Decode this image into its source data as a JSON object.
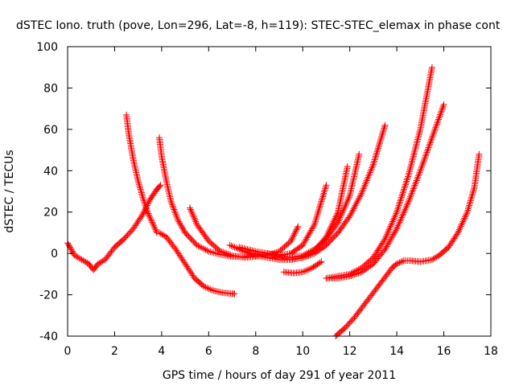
{
  "chart_data": {
    "type": "scatter",
    "title": "dSTEC Iono. truth (pove, Lon=296, Lat=-8, h=119): STEC-STEC_elemax in phase cont",
    "xlabel": "GPS time / hours of day 291 of year 2011",
    "ylabel": "dSTEC  / TECUs",
    "xlim": [
      0,
      18
    ],
    "ylim": [
      -40,
      100
    ],
    "xticks": [
      0,
      2,
      4,
      6,
      8,
      10,
      12,
      14,
      16,
      18
    ],
    "yticks": [
      -40,
      -20,
      0,
      20,
      40,
      60,
      80,
      100
    ],
    "xtick_labels": [
      "0",
      "2",
      "4",
      "6",
      "8",
      "10",
      "12",
      "14",
      "16",
      "18"
    ],
    "ytick_labels": [
      "-40",
      "-20",
      "0",
      "20",
      "40",
      "60",
      "80",
      "100"
    ],
    "grid": false,
    "marker": "plus",
    "color": "#ff0000",
    "series": [
      {
        "x": [
          0.0,
          0.3,
          0.6,
          0.9,
          1.1,
          1.3,
          1.6,
          2.0,
          2.4,
          2.8,
          3.2,
          3.5,
          3.8,
          3.95
        ],
        "y": [
          5,
          -1,
          -3,
          -5,
          -8,
          -5,
          -3,
          3,
          7,
          12,
          19,
          26,
          31,
          33
        ]
      },
      {
        "x": [
          2.5,
          2.6,
          2.8,
          3.0,
          3.2,
          3.4,
          3.6,
          3.8
        ],
        "y": [
          67,
          58,
          45,
          35,
          27,
          20,
          15,
          10
        ]
      },
      {
        "x": [
          3.9,
          4.2,
          4.6,
          5.0,
          5.4,
          5.8,
          6.2,
          6.6,
          7.0,
          7.1
        ],
        "y": [
          10,
          8,
          2,
          -5,
          -12,
          -16,
          -18,
          -19,
          -19.5,
          -19.5
        ]
      },
      {
        "x": [
          3.9,
          4.0,
          4.2,
          4.4,
          4.7,
          5.0,
          5.5,
          6.0,
          6.5,
          7.0,
          7.5,
          8.0,
          8.5,
          9.0
        ],
        "y": [
          56,
          47,
          35,
          25,
          16,
          10,
          4,
          1,
          -0.5,
          -1.5,
          -1.5,
          -1,
          -0.5,
          -0.5
        ]
      },
      {
        "x": [
          5.2,
          5.5,
          6.0,
          6.5,
          7.0,
          7.5,
          8.0,
          8.5,
          9.0,
          9.5,
          9.8
        ],
        "y": [
          22,
          14,
          6,
          1,
          -1,
          -2,
          -1.5,
          -1,
          1,
          6,
          13
        ]
      },
      {
        "x": [
          6.9,
          7.5,
          8.0,
          8.5,
          9.0,
          9.5,
          10.0,
          10.5,
          11.0,
          11.5,
          11.9
        ],
        "y": [
          4,
          1,
          -1,
          -2,
          -3,
          -3,
          -2,
          1,
          8,
          20,
          42
        ]
      },
      {
        "x": [
          7.3,
          8.0,
          8.5,
          9.0,
          9.5,
          10.0,
          10.5,
          11.0,
          11.5,
          12.0,
          12.4
        ],
        "y": [
          3,
          1,
          0,
          -1,
          -2,
          -1,
          2,
          7,
          15,
          28,
          48
        ]
      },
      {
        "x": [
          8.0,
          8.5,
          9.0,
          9.5,
          10.0,
          10.5,
          11.0
        ],
        "y": [
          0,
          -1,
          -1,
          0,
          4,
          14,
          33
        ]
      },
      {
        "x": [
          8.5,
          9.0,
          9.5,
          10.0,
          10.5,
          11.0,
          11.5,
          12.0,
          12.5,
          13.0,
          13.5
        ],
        "y": [
          0,
          -2,
          -3,
          -2,
          0,
          4,
          10,
          18,
          29,
          43,
          62
        ]
      },
      {
        "x": [
          9.2,
          9.6,
          10.0,
          10.4,
          10.8
        ],
        "y": [
          -9,
          -9.5,
          -9,
          -7,
          -4
        ]
      },
      {
        "x": [
          11.0,
          11.5,
          12.0,
          12.5,
          13.0,
          13.5,
          14.0,
          14.5,
          15.0,
          15.5,
          16.0
        ],
        "y": [
          -12,
          -12,
          -11,
          -9,
          -5,
          2,
          12,
          25,
          40,
          56,
          72
        ]
      },
      {
        "x": [
          11.0,
          11.5,
          12.0,
          12.5,
          13.0,
          13.5,
          14.0,
          14.5,
          15.0,
          15.5
        ],
        "y": [
          -12,
          -11,
          -10,
          -7,
          -2,
          7,
          20,
          38,
          60,
          90
        ]
      },
      {
        "x": [
          11.4,
          11.8,
          12.2,
          12.6,
          13.0,
          13.4,
          13.8,
          14.0,
          14.3,
          14.6,
          15.0,
          15.5,
          15.8,
          16.2,
          16.6,
          17.0,
          17.3,
          17.5
        ],
        "y": [
          -40,
          -36,
          -31,
          -25,
          -19,
          -13,
          -7,
          -5,
          -3.5,
          -3.5,
          -4,
          -3,
          -1,
          3,
          10,
          20,
          32,
          48
        ]
      }
    ]
  }
}
